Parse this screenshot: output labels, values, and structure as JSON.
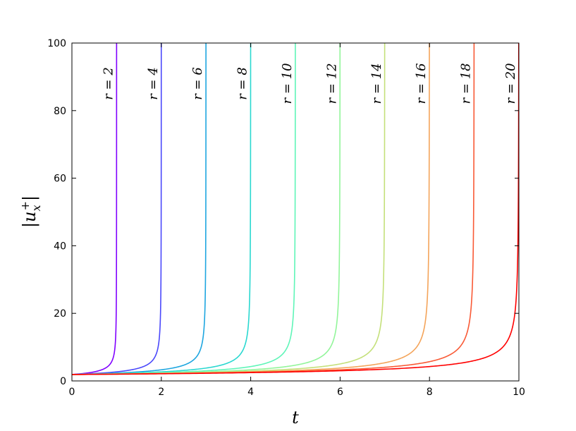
{
  "chart_data": {
    "type": "line",
    "xlabel": "t",
    "ylabel": "|u_x^+|",
    "xlim": [
      0,
      10
    ],
    "ylim": [
      0,
      100
    ],
    "grid": false,
    "legend": "none",
    "y0": 1.9,
    "x_ticks": [
      {
        "value": 0,
        "label": "0"
      },
      {
        "value": 2,
        "label": "2"
      },
      {
        "value": 4,
        "label": "4"
      },
      {
        "value": 6,
        "label": "6"
      },
      {
        "value": 8,
        "label": "8"
      },
      {
        "value": 10,
        "label": "10"
      }
    ],
    "y_ticks": [
      {
        "value": 0,
        "label": "0"
      },
      {
        "value": 20,
        "label": "20"
      },
      {
        "value": 40,
        "label": "40"
      },
      {
        "value": 60,
        "label": "60"
      },
      {
        "value": 80,
        "label": "80"
      },
      {
        "value": 100,
        "label": "100"
      }
    ],
    "series": [
      {
        "name": "r = 2",
        "r": 2,
        "blowup_t": 1.0,
        "color": "#8000ff"
      },
      {
        "name": "r = 4",
        "r": 4,
        "blowup_t": 2.0,
        "color": "#4a48fb"
      },
      {
        "name": "r = 6",
        "r": 6,
        "blowup_t": 3.0,
        "color": "#1ea6e0"
      },
      {
        "name": "r = 8",
        "r": 8,
        "blowup_t": 4.0,
        "color": "#2ad8d0"
      },
      {
        "name": "r = 10",
        "r": 10,
        "blowup_t": 5.0,
        "color": "#5ff5b8"
      },
      {
        "name": "r = 12",
        "r": 12,
        "blowup_t": 6.0,
        "color": "#92f59a"
      },
      {
        "name": "r = 14",
        "r": 14,
        "blowup_t": 7.0,
        "color": "#c4e07a"
      },
      {
        "name": "r = 16",
        "r": 16,
        "blowup_t": 8.0,
        "color": "#f4a45a"
      },
      {
        "name": "r = 18",
        "r": 18,
        "blowup_t": 9.0,
        "color": "#f95a36"
      },
      {
        "name": "r = 20",
        "r": 20,
        "blowup_t": 10.0,
        "color": "#ff0000"
      }
    ]
  }
}
